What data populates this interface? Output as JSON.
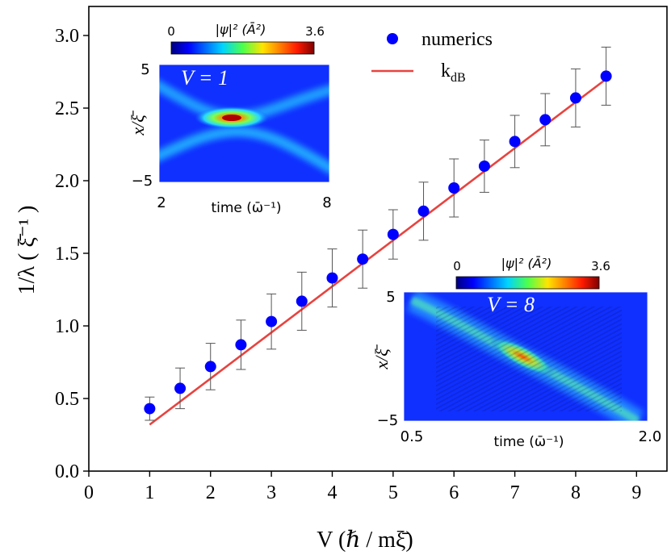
{
  "chart_data": {
    "type": "scatter",
    "xlabel": "V (ℏ / mξ̄)",
    "ylabel": "1/λ ( ξ̄⁻¹ )",
    "xlim": [
      0,
      9.5
    ],
    "ylim": [
      0,
      3.2
    ],
    "xticks": [
      "0",
      "1",
      "2",
      "3",
      "4",
      "5",
      "6",
      "7",
      "8",
      "9"
    ],
    "yticks": [
      "0.0",
      "0.5",
      "1.0",
      "1.5",
      "2.0",
      "2.5",
      "3.0"
    ],
    "legend_position": "top-center",
    "series": [
      {
        "name": "numerics",
        "kind": "points-with-errorbars",
        "color": "#0000ff",
        "x": [
          1,
          1.5,
          2,
          2.5,
          3,
          3.5,
          4,
          4.5,
          5,
          5.5,
          6,
          6.5,
          7,
          7.5,
          8,
          8.5
        ],
        "y": [
          0.43,
          0.57,
          0.72,
          0.87,
          1.03,
          1.17,
          1.33,
          1.46,
          1.63,
          1.79,
          1.95,
          2.1,
          2.27,
          2.42,
          2.57,
          2.72
        ],
        "err": [
          0.08,
          0.14,
          0.16,
          0.17,
          0.19,
          0.2,
          0.2,
          0.2,
          0.17,
          0.2,
          0.2,
          0.18,
          0.18,
          0.18,
          0.2,
          0.2
        ]
      },
      {
        "name": "k",
        "name_subscript": "dB",
        "kind": "line",
        "color": "#e8433f",
        "x": [
          1,
          8.5
        ],
        "y": [
          0.32,
          2.7
        ]
      }
    ],
    "insets": [
      {
        "id": "inset-v1",
        "label": "V = 1",
        "colorbar_label": "|ψ|² (Ā²)",
        "colorbar_min": "0",
        "colorbar_max": "3.6",
        "xlabel": "time (ω̄⁻¹)",
        "ylabel": "x/ξ̄",
        "x_ticks": [
          "2",
          "8"
        ],
        "y_ticks": [
          "5",
          "−5"
        ]
      },
      {
        "id": "inset-v8",
        "label": "V = 8",
        "colorbar_label": "|ψ|² (Ā²)",
        "colorbar_min": "0",
        "colorbar_max": "3.6",
        "xlabel": "time (ω̄⁻¹)",
        "ylabel": "x/ξ̄",
        "x_ticks": [
          "0.5",
          "2.0"
        ],
        "y_ticks": [
          "5",
          "−5"
        ]
      }
    ]
  }
}
